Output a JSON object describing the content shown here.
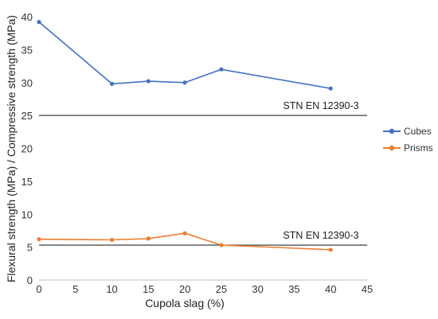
{
  "chart_data": {
    "type": "line",
    "xlabel": "Cupola slag (%)",
    "ylabel": "Flexural strength (MPa) / Compressive strength  (MPa)",
    "xlim": [
      0,
      45
    ],
    "ylim": [
      0,
      40
    ],
    "x_ticks": [
      "0",
      "5",
      "10",
      "15",
      "20",
      "25",
      "30",
      "35",
      "40",
      "45"
    ],
    "y_ticks": [
      "0",
      "5",
      "10",
      "15",
      "20",
      "25",
      "30",
      "35",
      "40"
    ],
    "grid": false,
    "legend_position": "right",
    "series": [
      {
        "name": "Cubes",
        "color": "#4472c4",
        "x": [
          0,
          10,
          15,
          20,
          25,
          40
        ],
        "y": [
          39.2,
          29.8,
          30.2,
          30.0,
          32.0,
          29.1
        ]
      },
      {
        "name": "Prisms",
        "color": "#ed7d31",
        "x": [
          0,
          10,
          15,
          20,
          25,
          40
        ],
        "y": [
          6.2,
          6.1,
          6.3,
          7.1,
          5.3,
          4.6
        ]
      }
    ],
    "reference_lines": [
      {
        "label": "STN EN 12390-3",
        "y": 25.0,
        "color": "#404040"
      },
      {
        "label": "STN EN 12390-3",
        "y": 5.3,
        "color": "#404040"
      }
    ]
  }
}
